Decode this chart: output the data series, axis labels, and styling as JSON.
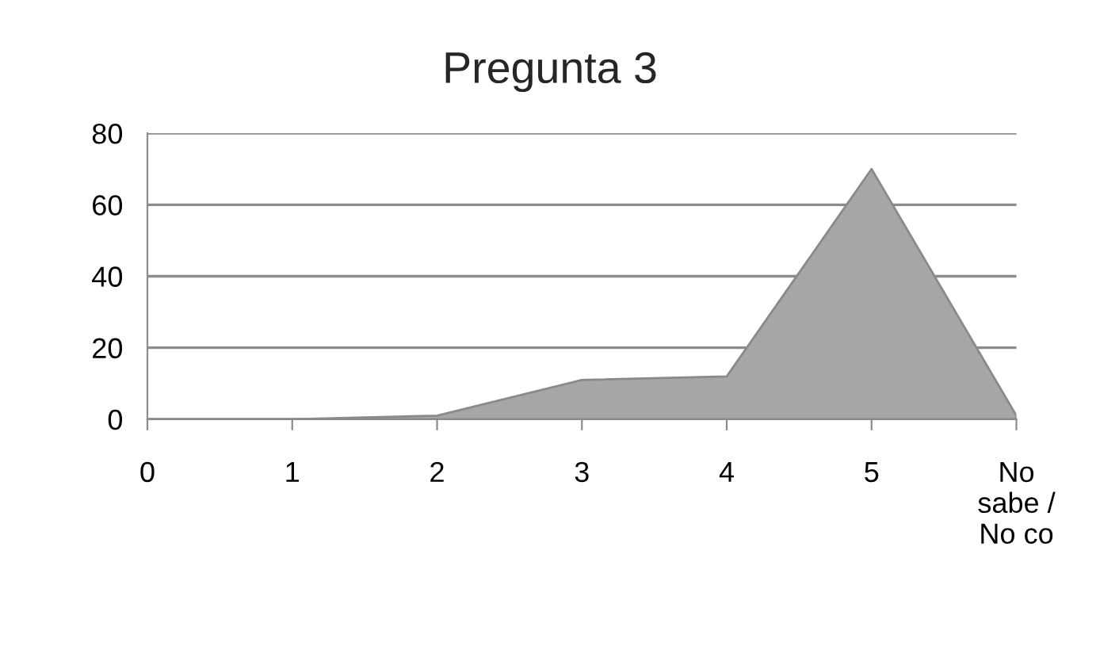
{
  "chart_data": {
    "type": "area",
    "title": "Pregunta 3",
    "categories": [
      "0",
      "1",
      "2",
      "3",
      "4",
      "5",
      "No\nsabe /\nNo co"
    ],
    "values": [
      0,
      0,
      1,
      11,
      12,
      70,
      1
    ],
    "color": "#a6a6a6",
    "ylim": [
      0,
      80
    ],
    "yticks": [
      0,
      20,
      40,
      60,
      80
    ],
    "grid": "y",
    "legend": false
  }
}
